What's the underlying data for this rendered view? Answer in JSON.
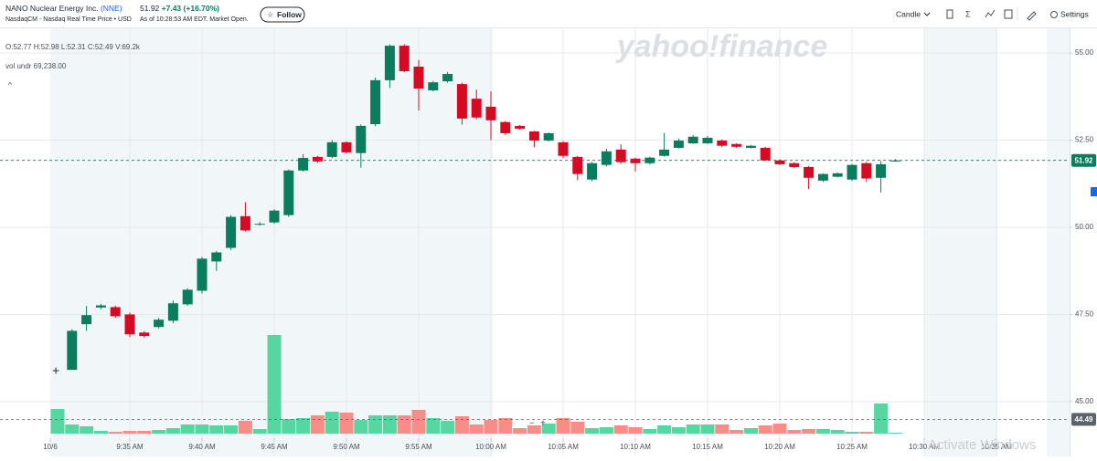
{
  "header": {
    "company": "NANO Nuclear Energy Inc.",
    "symbol": "(NNE)",
    "exchange": "NasdaqCM - Nasdaq Real Time Price • USD",
    "price": "51.92",
    "change": "+7.43",
    "change_pct": "(+16.70%)",
    "as_of": "As of 10:28:53 AM EDT. Market Open.",
    "follow": "Follow",
    "chart_type": "Candle",
    "sigma": "Σ",
    "settings": "Settings"
  },
  "legend": {
    "ohlc": "O:52.77  H:52.98  L:52.31  C:52.49  V:69.2k",
    "volume": "vol undr  69,238.00",
    "caret": "^"
  },
  "chart_data": {
    "type": "candlestick",
    "watermark": "yahoo!finance",
    "overlay_text": "Activate Windows",
    "categories": [
      "10/6",
      null,
      null,
      null,
      null,
      "9:35 AM",
      null,
      null,
      null,
      null,
      "9:40 AM",
      null,
      null,
      null,
      null,
      "9:45 AM",
      null,
      null,
      null,
      null,
      "9:50 AM",
      null,
      null,
      null,
      null,
      "9:55 AM",
      null,
      null,
      null,
      null,
      "10:00 AM",
      null,
      null,
      null,
      null,
      "10:05 AM",
      null,
      null,
      null,
      null,
      "10:10 AM",
      null,
      null,
      null,
      null,
      "10:15 AM",
      null,
      null,
      null,
      null,
      "10:20 AM",
      null,
      null,
      null,
      null,
      "10:25 AM",
      null,
      null,
      null,
      null,
      "10:30 AM",
      null,
      null,
      null,
      null,
      "10:35 AM"
    ],
    "open": [
      null,
      45.91,
      47.22,
      47.7,
      47.71,
      47.5,
      46.98,
      47.14,
      47.32,
      47.79,
      48.18,
      49.02,
      49.41,
      50.32,
      50.08,
      50.14,
      50.35,
      51.63,
      52.02,
      52.02,
      52.44,
      52.13,
      52.96,
      54.22,
      55.21,
      54.61,
      53.93,
      54.19,
      54.11,
      53.69,
      53.46,
      53.02,
      52.91,
      52.75,
      52.49,
      52.44,
      52.02,
      51.37,
      51.79,
      52.23,
      51.97,
      51.84,
      52.05,
      52.28,
      52.41,
      52.41,
      52.49,
      52.39,
      52.28,
      52.28,
      51.92,
      51.84,
      51.73,
      51.34,
      51.45,
      51.37,
      51.84,
      51.42,
      51.89,
      null,
      null,
      null,
      null,
      null,
      null,
      null
    ],
    "high": [
      null,
      47.08,
      47.74,
      47.8,
      47.75,
      47.55,
      47.02,
      47.4,
      47.9,
      48.25,
      49.15,
      49.32,
      50.35,
      50.72,
      50.15,
      50.52,
      51.66,
      52.1,
      52.05,
      52.5,
      52.47,
      52.95,
      54.3,
      55.25,
      55.25,
      54.8,
      54.2,
      54.45,
      54.15,
      53.95,
      53.9,
      53.05,
      52.93,
      52.77,
      52.72,
      52.47,
      52.05,
      51.88,
      52.25,
      52.38,
      52.0,
      52.03,
      52.7,
      52.55,
      52.65,
      52.62,
      52.52,
      52.41,
      52.36,
      52.31,
      51.95,
      51.87,
      51.76,
      51.55,
      51.58,
      51.82,
      51.88,
      51.9,
      51.96,
      null,
      null,
      null,
      null,
      null,
      null,
      null
    ],
    "low": [
      null,
      45.91,
      47.03,
      47.65,
      47.4,
      46.85,
      46.83,
      47.1,
      47.25,
      47.75,
      48.1,
      48.75,
      49.35,
      49.88,
      50.05,
      50.1,
      50.3,
      51.6,
      51.85,
      51.98,
      52.12,
      51.71,
      52.9,
      54.0,
      54.45,
      53.35,
      53.9,
      54.15,
      52.95,
      53.1,
      52.5,
      52.65,
      52.8,
      52.3,
      52.46,
      51.98,
      51.35,
      51.32,
      51.75,
      51.82,
      51.6,
      51.8,
      52.03,
      52.26,
      52.39,
      52.39,
      52.3,
      52.28,
      52.26,
      51.9,
      51.78,
      51.7,
      51.1,
      51.3,
      51.43,
      51.33,
      51.3,
      51.0,
      51.88,
      null,
      null,
      null,
      null,
      null,
      null,
      null
    ],
    "close": [
      null,
      47.03,
      47.48,
      47.76,
      47.45,
      46.93,
      46.88,
      47.35,
      47.82,
      48.21,
      49.1,
      49.28,
      50.3,
      49.91,
      50.1,
      50.48,
      51.63,
      51.99,
      51.89,
      52.44,
      52.15,
      52.91,
      54.22,
      55.21,
      54.48,
      53.98,
      54.16,
      54.4,
      53.12,
      53.15,
      53.07,
      52.7,
      52.83,
      52.49,
      52.7,
      52.05,
      51.53,
      51.84,
      52.18,
      51.87,
      51.84,
      52.0,
      52.23,
      52.49,
      52.6,
      52.57,
      52.34,
      52.31,
      52.34,
      51.92,
      51.81,
      51.73,
      51.42,
      51.53,
      51.55,
      51.79,
      51.4,
      51.81,
      51.92,
      null,
      null,
      null,
      null,
      null,
      null,
      null
    ],
    "volume": [
      17280,
      6400,
      5120,
      1920,
      1280,
      1920,
      1920,
      2560,
      3840,
      6400,
      6400,
      5760,
      5760,
      8960,
      3200,
      69120,
      10240,
      10880,
      12800,
      15360,
      14720,
      9600,
      12800,
      12800,
      12800,
      16640,
      10880,
      8960,
      12160,
      6400,
      9600,
      10880,
      3840,
      5760,
      7040,
      10880,
      8320,
      3840,
      4480,
      5760,
      4480,
      3200,
      5760,
      4480,
      6400,
      6400,
      6400,
      2560,
      3840,
      5760,
      7040,
      2560,
      3200,
      3200,
      2560,
      1280,
      1280,
      21120,
      640,
      null,
      null,
      null,
      null,
      null,
      null,
      null
    ],
    "up_color": "#0b7d5e",
    "down_color": "#d60a22",
    "volume_up_color": "#56d6a0",
    "volume_down_color": "#f78d87",
    "ylim": [
      43.95,
      55.71
    ],
    "yticks": [
      {
        "value": 45,
        "label": "45.00"
      },
      {
        "value": 47.5,
        "label": "47.50"
      },
      {
        "value": 50,
        "label": "50.00"
      },
      {
        "value": 52.5,
        "label": "52.50"
      },
      {
        "value": 55,
        "label": "55.00"
      }
    ],
    "grid": true,
    "price_lines": [
      {
        "value": 51.92,
        "label": "51.92",
        "color": "#0b7d5e"
      },
      {
        "value": 44.49,
        "label": "44.49",
        "color": "#5b636a"
      }
    ]
  }
}
